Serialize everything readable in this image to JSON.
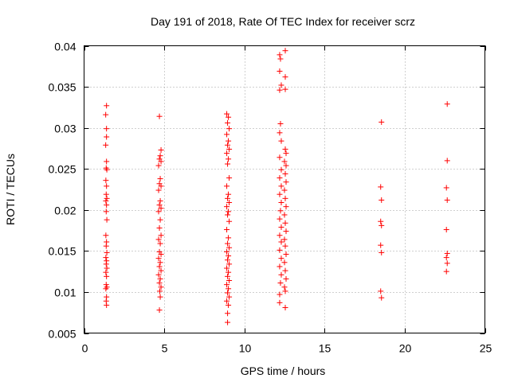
{
  "chart_data": {
    "type": "scatter",
    "title": "Day 191 of 2018, Rate Of TEC Index for receiver scrz",
    "xlabel": "GPS time / hours",
    "ylabel": "ROTI / TECUs",
    "xlim": [
      0,
      25
    ],
    "ylim": [
      0.005,
      0.04
    ],
    "xticks": [
      0,
      5,
      10,
      15,
      20,
      25
    ],
    "xtick_labels": [
      "0",
      "5",
      "10",
      "15",
      "20",
      "25"
    ],
    "yticks": [
      0.005,
      0.01,
      0.015,
      0.02,
      0.025,
      0.03,
      0.035,
      0.04
    ],
    "ytick_labels": [
      "0.005",
      "0.01",
      "0.015",
      "0.02",
      "0.025",
      "0.03",
      "0.035",
      "0.04"
    ],
    "grid": true,
    "marker": "+",
    "color": "#ff0000",
    "series": [
      {
        "name": "ROTI",
        "points": [
          [
            1.4,
            0.0327
          ],
          [
            1.35,
            0.0316
          ],
          [
            1.4,
            0.0299
          ],
          [
            1.4,
            0.0289
          ],
          [
            1.35,
            0.0279
          ],
          [
            1.4,
            0.0259
          ],
          [
            1.38,
            0.0251
          ],
          [
            1.42,
            0.0249
          ],
          [
            1.36,
            0.0236
          ],
          [
            1.4,
            0.0229
          ],
          [
            1.38,
            0.0219
          ],
          [
            1.42,
            0.0214
          ],
          [
            1.36,
            0.0211
          ],
          [
            1.4,
            0.0206
          ],
          [
            1.38,
            0.0198
          ],
          [
            1.42,
            0.0188
          ],
          [
            1.36,
            0.0169
          ],
          [
            1.4,
            0.0161
          ],
          [
            1.38,
            0.0156
          ],
          [
            1.42,
            0.0148
          ],
          [
            1.36,
            0.0142
          ],
          [
            1.4,
            0.0138
          ],
          [
            1.38,
            0.0134
          ],
          [
            1.42,
            0.0129
          ],
          [
            1.36,
            0.0124
          ],
          [
            1.4,
            0.0119
          ],
          [
            1.38,
            0.0109
          ],
          [
            1.42,
            0.0106
          ],
          [
            1.36,
            0.0104
          ],
          [
            1.4,
            0.0094
          ],
          [
            1.38,
            0.0089
          ],
          [
            1.4,
            0.0084
          ],
          [
            4.7,
            0.0314
          ],
          [
            4.8,
            0.0273
          ],
          [
            4.75,
            0.0266
          ],
          [
            4.7,
            0.0262
          ],
          [
            4.8,
            0.0259
          ],
          [
            4.65,
            0.0254
          ],
          [
            4.75,
            0.0238
          ],
          [
            4.7,
            0.0232
          ],
          [
            4.8,
            0.0229
          ],
          [
            4.65,
            0.0224
          ],
          [
            4.75,
            0.0211
          ],
          [
            4.7,
            0.0206
          ],
          [
            4.8,
            0.0202
          ],
          [
            4.65,
            0.0198
          ],
          [
            4.75,
            0.0188
          ],
          [
            4.7,
            0.0178
          ],
          [
            4.8,
            0.0169
          ],
          [
            4.65,
            0.0164
          ],
          [
            4.75,
            0.0159
          ],
          [
            4.7,
            0.0149
          ],
          [
            4.8,
            0.0146
          ],
          [
            4.65,
            0.0141
          ],
          [
            4.75,
            0.0136
          ],
          [
            4.7,
            0.0131
          ],
          [
            4.8,
            0.0126
          ],
          [
            4.65,
            0.0121
          ],
          [
            4.75,
            0.0116
          ],
          [
            4.7,
            0.0111
          ],
          [
            4.8,
            0.0106
          ],
          [
            4.72,
            0.0101
          ],
          [
            4.75,
            0.0094
          ],
          [
            4.7,
            0.0078
          ],
          [
            8.9,
            0.0317
          ],
          [
            9.0,
            0.0313
          ],
          [
            8.95,
            0.0306
          ],
          [
            9.05,
            0.0299
          ],
          [
            8.9,
            0.0292
          ],
          [
            9.0,
            0.0284
          ],
          [
            8.95,
            0.0279
          ],
          [
            9.05,
            0.0274
          ],
          [
            8.9,
            0.0269
          ],
          [
            9.0,
            0.0262
          ],
          [
            8.95,
            0.0256
          ],
          [
            9.05,
            0.0239
          ],
          [
            8.9,
            0.0229
          ],
          [
            9.0,
            0.0219
          ],
          [
            8.95,
            0.0214
          ],
          [
            9.05,
            0.0209
          ],
          [
            8.9,
            0.0204
          ],
          [
            9.0,
            0.0198
          ],
          [
            8.95,
            0.0194
          ],
          [
            9.05,
            0.0186
          ],
          [
            8.9,
            0.0176
          ],
          [
            9.0,
            0.0166
          ],
          [
            8.95,
            0.0159
          ],
          [
            9.05,
            0.0154
          ],
          [
            8.9,
            0.0149
          ],
          [
            9.0,
            0.0144
          ],
          [
            8.95,
            0.0139
          ],
          [
            9.05,
            0.0134
          ],
          [
            8.9,
            0.0129
          ],
          [
            9.0,
            0.0124
          ],
          [
            8.95,
            0.0119
          ],
          [
            9.05,
            0.0114
          ],
          [
            8.9,
            0.0109
          ],
          [
            9.0,
            0.0104
          ],
          [
            8.95,
            0.0099
          ],
          [
            9.05,
            0.0094
          ],
          [
            8.9,
            0.0089
          ],
          [
            9.0,
            0.0084
          ],
          [
            8.95,
            0.0074
          ],
          [
            8.95,
            0.0063
          ],
          [
            12.2,
            0.0389
          ],
          [
            12.55,
            0.0394
          ],
          [
            12.25,
            0.0384
          ],
          [
            12.2,
            0.0369
          ],
          [
            12.55,
            0.0362
          ],
          [
            12.3,
            0.0352
          ],
          [
            12.2,
            0.0346
          ],
          [
            12.55,
            0.0347
          ],
          [
            12.25,
            0.0305
          ],
          [
            12.2,
            0.0294
          ],
          [
            12.3,
            0.0284
          ],
          [
            12.55,
            0.0274
          ],
          [
            12.6,
            0.0269
          ],
          [
            12.2,
            0.0264
          ],
          [
            12.5,
            0.0259
          ],
          [
            12.6,
            0.0254
          ],
          [
            12.3,
            0.0249
          ],
          [
            12.55,
            0.0244
          ],
          [
            12.2,
            0.0239
          ],
          [
            12.6,
            0.0234
          ],
          [
            12.3,
            0.0229
          ],
          [
            12.5,
            0.0224
          ],
          [
            12.2,
            0.0219
          ],
          [
            12.55,
            0.0214
          ],
          [
            12.3,
            0.0209
          ],
          [
            12.6,
            0.0204
          ],
          [
            12.25,
            0.0199
          ],
          [
            12.5,
            0.0194
          ],
          [
            12.2,
            0.0189
          ],
          [
            12.55,
            0.0184
          ],
          [
            12.3,
            0.0179
          ],
          [
            12.6,
            0.0174
          ],
          [
            12.2,
            0.0169
          ],
          [
            12.5,
            0.0164
          ],
          [
            12.3,
            0.0161
          ],
          [
            12.55,
            0.0156
          ],
          [
            12.2,
            0.0151
          ],
          [
            12.6,
            0.0146
          ],
          [
            12.3,
            0.0141
          ],
          [
            12.5,
            0.0136
          ],
          [
            12.2,
            0.0131
          ],
          [
            12.55,
            0.0126
          ],
          [
            12.3,
            0.0121
          ],
          [
            12.6,
            0.0116
          ],
          [
            12.25,
            0.0111
          ],
          [
            12.5,
            0.0106
          ],
          [
            12.55,
            0.0101
          ],
          [
            12.2,
            0.0097
          ],
          [
            12.2,
            0.0087
          ],
          [
            12.55,
            0.0081
          ],
          [
            18.55,
            0.0307
          ],
          [
            18.5,
            0.0228
          ],
          [
            18.55,
            0.0212
          ],
          [
            18.5,
            0.0186
          ],
          [
            18.55,
            0.0181
          ],
          [
            18.5,
            0.0157
          ],
          [
            18.55,
            0.0148
          ],
          [
            18.5,
            0.0101
          ],
          [
            18.55,
            0.0093
          ],
          [
            22.65,
            0.0329
          ],
          [
            22.65,
            0.026
          ],
          [
            22.6,
            0.0227
          ],
          [
            22.65,
            0.0212
          ],
          [
            22.6,
            0.0176
          ],
          [
            22.65,
            0.0147
          ],
          [
            22.6,
            0.0142
          ],
          [
            22.65,
            0.0135
          ],
          [
            22.6,
            0.0125
          ]
        ]
      }
    ]
  }
}
